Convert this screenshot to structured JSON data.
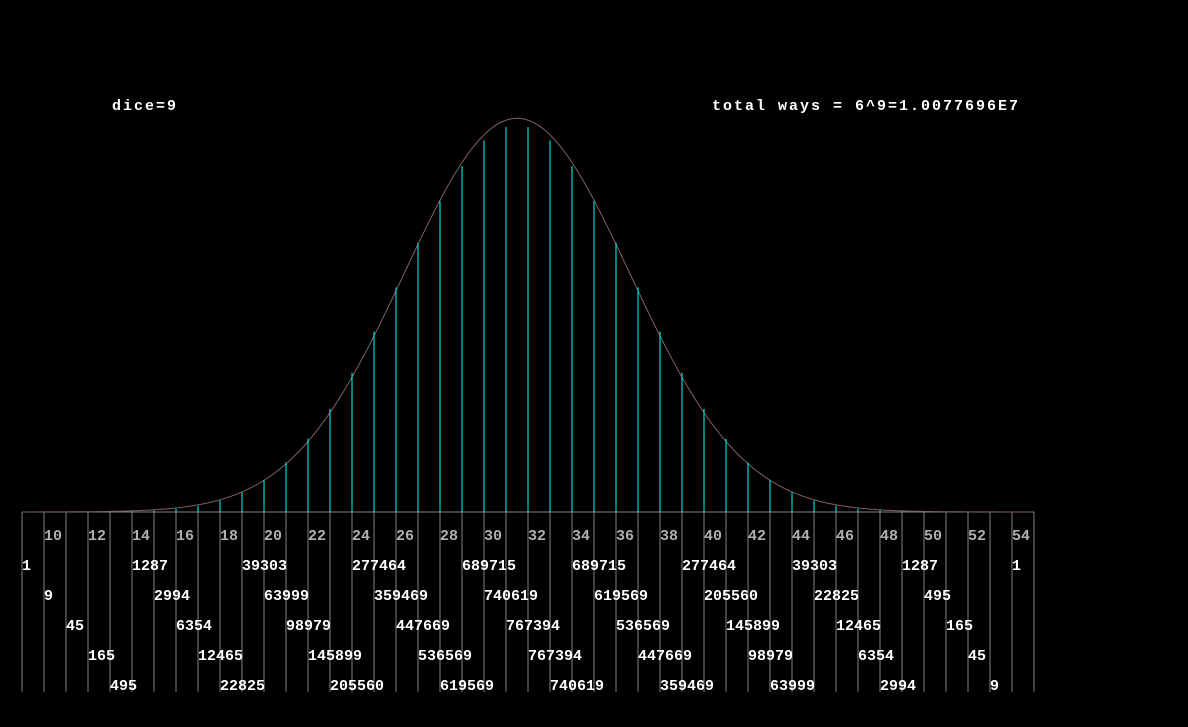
{
  "chart_data": {
    "type": "bar",
    "annotations": [
      "dice=9",
      "total ways = 6^9=1.0077696E7"
    ],
    "x": [
      9,
      10,
      11,
      12,
      13,
      14,
      15,
      16,
      17,
      18,
      19,
      20,
      21,
      22,
      23,
      24,
      25,
      26,
      27,
      28,
      29,
      30,
      31,
      32,
      33,
      34,
      35,
      36,
      37,
      38,
      39,
      40,
      41,
      42,
      43,
      44,
      45,
      46,
      47,
      48,
      49,
      50,
      51,
      52,
      53,
      54
    ],
    "values": [
      1,
      9,
      45,
      165,
      495,
      1287,
      2994,
      6354,
      12465,
      22825,
      39303,
      63999,
      98979,
      145899,
      205560,
      277464,
      359469,
      447669,
      536569,
      619569,
      689715,
      740619,
      767394,
      767394,
      740619,
      689715,
      619569,
      536569,
      447669,
      359469,
      277464,
      205560,
      145899,
      98979,
      63999,
      39303,
      22825,
      12465,
      6354,
      2994,
      1287,
      495,
      165,
      45,
      9,
      1
    ],
    "xticks": [
      10,
      12,
      14,
      16,
      18,
      20,
      22,
      24,
      26,
      28,
      30,
      32,
      34,
      36,
      38,
      40,
      42,
      44,
      46,
      48,
      50,
      52,
      54
    ],
    "color": "#00ffff",
    "curve_color": "#806060",
    "grid_color": "#808080"
  }
}
